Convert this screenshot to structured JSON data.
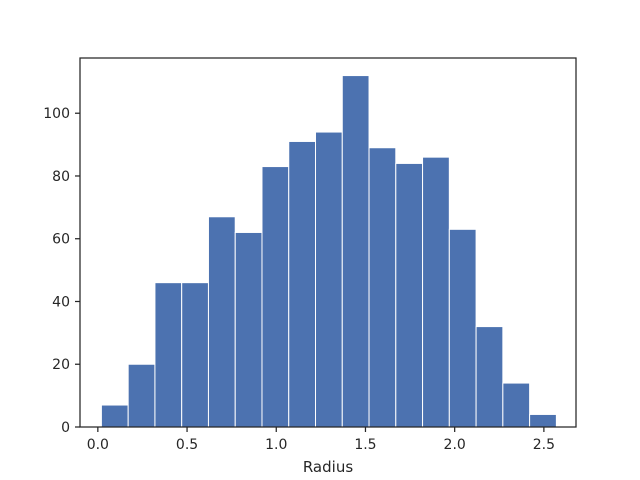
{
  "chart_data": {
    "type": "bar",
    "subtype": "histogram",
    "title": "",
    "xlabel": "Radius",
    "ylabel": "",
    "bar_color": "#4c72b0",
    "edge_color": "#ffffff",
    "bin_edges": [
      0.02,
      0.17,
      0.32,
      0.47,
      0.62,
      0.77,
      0.92,
      1.07,
      1.22,
      1.37,
      1.52,
      1.67,
      1.82,
      1.97,
      2.12,
      2.27,
      2.42,
      2.57
    ],
    "values": [
      7,
      20,
      46,
      46,
      67,
      62,
      83,
      91,
      94,
      112,
      89,
      84,
      86,
      63,
      32,
      14,
      4
    ],
    "xlim": [
      -0.1,
      2.68
    ],
    "ylim": [
      0,
      117.6
    ],
    "xticks": [
      0.0,
      0.5,
      1.0,
      1.5,
      2.0,
      2.5
    ],
    "xtick_labels": [
      "0.0",
      "0.5",
      "1.0",
      "1.5",
      "2.0",
      "2.5"
    ],
    "yticks": [
      0,
      20,
      40,
      60,
      80,
      100
    ],
    "ytick_labels": [
      "0",
      "20",
      "40",
      "60",
      "80",
      "100"
    ],
    "grid": false,
    "legend": "none"
  }
}
